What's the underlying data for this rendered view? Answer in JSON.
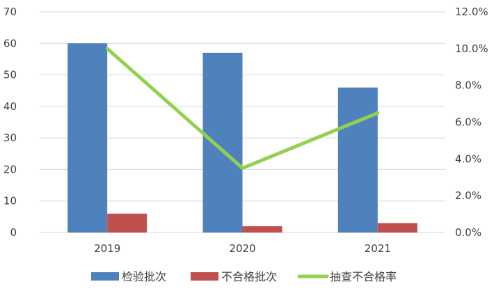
{
  "chart_data": {
    "type": "bar",
    "categories": [
      "2019",
      "2020",
      "2021"
    ],
    "series": [
      {
        "name": "检验批次",
        "kind": "bar",
        "axis": "left",
        "color": "#4f81bd",
        "values": [
          60,
          57,
          46
        ]
      },
      {
        "name": "不合格批次",
        "kind": "bar",
        "axis": "left",
        "color": "#c0504d",
        "values": [
          6,
          2,
          3
        ]
      },
      {
        "name": "抽查不合格率",
        "kind": "line",
        "axis": "right",
        "color": "#92d050",
        "values": [
          10.0,
          3.5,
          6.5
        ]
      }
    ],
    "left_axis": {
      "min": 0,
      "max": 70,
      "step": 10,
      "tick_labels": [
        "0",
        "10",
        "20",
        "30",
        "40",
        "50",
        "60",
        "70"
      ]
    },
    "right_axis": {
      "min": 0,
      "max": 12,
      "step": 2,
      "tick_labels": [
        "0.0%",
        "2.0%",
        "4.0%",
        "6.0%",
        "8.0%",
        "10.0%",
        "12.0%"
      ]
    },
    "grid": true,
    "legend_position": "bottom"
  }
}
